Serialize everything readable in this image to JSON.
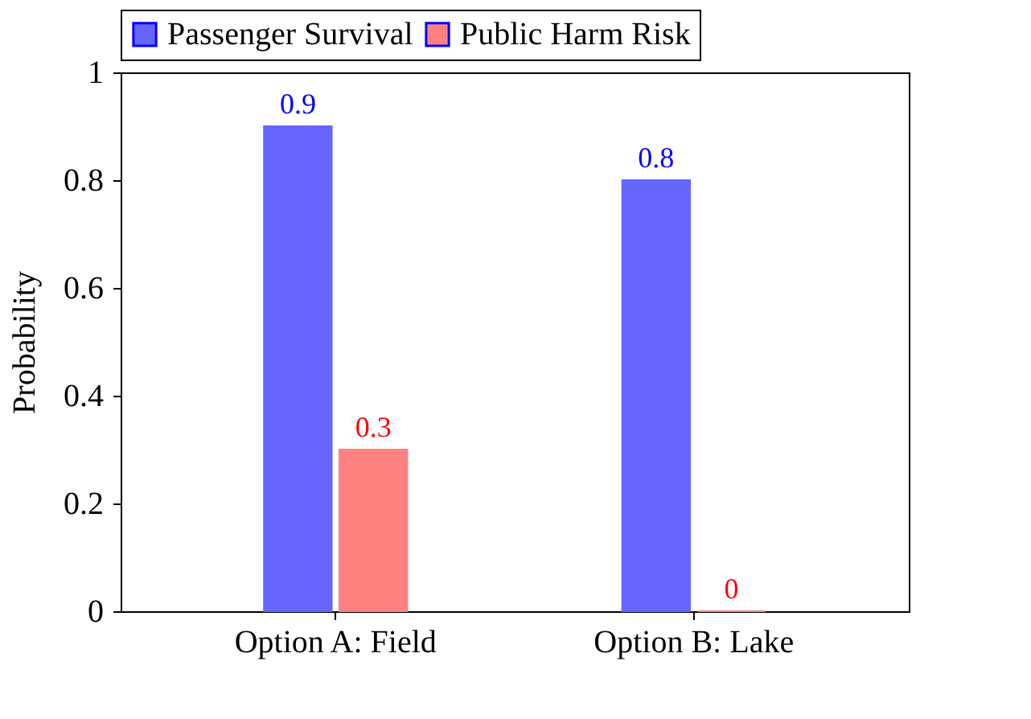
{
  "chart_data": {
    "type": "bar",
    "ylabel": "Probability",
    "categories": [
      "Option A: Field",
      "Option B: Lake"
    ],
    "series": [
      {
        "name": "Passenger Survival",
        "color": "#6666ff",
        "values": [
          0.9,
          0.8
        ]
      },
      {
        "name": "Public Harm Risk",
        "color": "#ff8080",
        "values": [
          0.3,
          0
        ]
      }
    ],
    "ylim": [
      0,
      1
    ],
    "yticks": [
      0,
      0.2,
      0.4,
      0.6,
      0.8,
      1
    ],
    "data_labels": true,
    "legend": "top",
    "grid": false
  }
}
